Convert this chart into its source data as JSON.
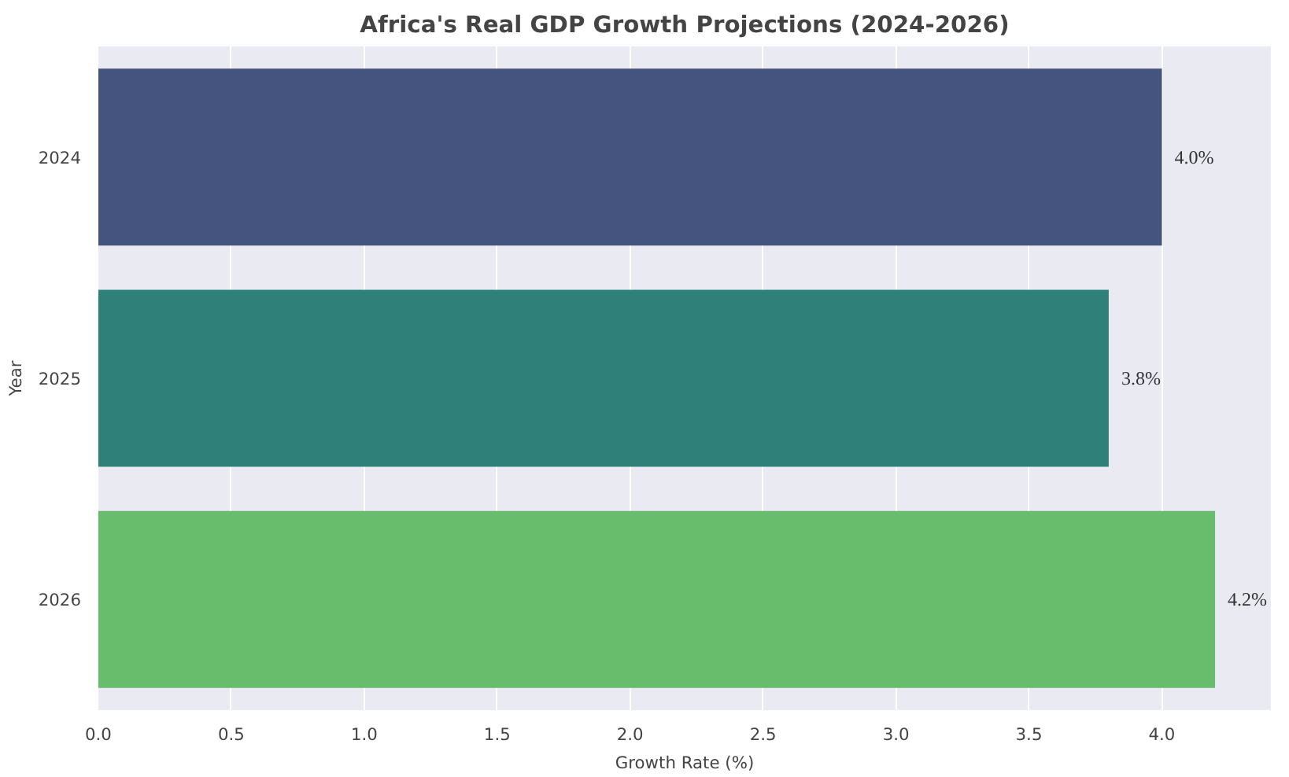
{
  "chart_data": {
    "type": "bar",
    "orientation": "horizontal",
    "title": "Africa's Real GDP Growth Projections (2024-2026)",
    "xlabel": "Growth Rate (%)",
    "ylabel": "Year",
    "categories": [
      "2024",
      "2025",
      "2026"
    ],
    "values": [
      4.0,
      3.8,
      4.2
    ],
    "colors": [
      "#45547f",
      "#2e8078",
      "#68bd6c"
    ],
    "value_labels": [
      "4.0%",
      "3.8%",
      "4.2%"
    ],
    "xlim": [
      0,
      4.41
    ],
    "xticks": [
      {
        "value": 0,
        "label": "0.0"
      },
      0.5,
      {
        "value": 1,
        "label": "1.0"
      },
      1.5,
      {
        "value": 2,
        "label": "2.0"
      },
      2.5,
      {
        "value": 3,
        "label": "3.0"
      },
      3.5,
      {
        "value": 4,
        "label": "4.0"
      }
    ],
    "grid": "x"
  }
}
